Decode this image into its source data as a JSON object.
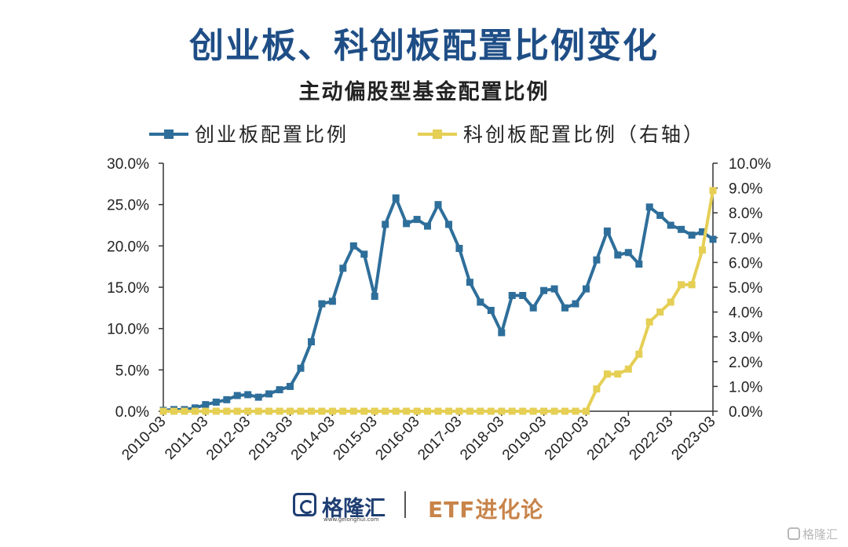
{
  "headline": "创业板、科创板配置比例变化",
  "footer": {
    "brand": "格隆汇",
    "url": "www.gelonghui.com",
    "column": "ETF进化论"
  },
  "watermark": "格隆汇",
  "colors": {
    "headline": "#1f4e86",
    "series_left": "#2e6e9a",
    "series_right": "#e5cf55",
    "column_text": "#c8844a"
  },
  "chart_data": {
    "type": "line",
    "title": "主动偏股型基金配置比例",
    "legend_position": "top",
    "grid": false,
    "x_tick_labels": [
      "2010-03",
      "2011-03",
      "2012-03",
      "2013-03",
      "2014-03",
      "2015-03",
      "2016-03",
      "2017-03",
      "2018-03",
      "2019-03",
      "2020-03",
      "2021-03",
      "2022-03",
      "2023-03"
    ],
    "x_range": [
      "2010-03",
      "2023-03"
    ],
    "y_left": {
      "range": [
        0,
        30
      ],
      "ticks": [
        "0.0%",
        "5.0%",
        "10.0%",
        "15.0%",
        "20.0%",
        "25.0%",
        "30.0%"
      ]
    },
    "y_right": {
      "label": "",
      "range": [
        0,
        10
      ],
      "ticks": [
        "0.0%",
        "1.0%",
        "2.0%",
        "3.0%",
        "4.0%",
        "5.0%",
        "6.0%",
        "7.0%",
        "8.0%",
        "9.0%",
        "10.0%"
      ]
    },
    "x": [
      "2010-03",
      "2010-06",
      "2010-09",
      "2010-12",
      "2011-03",
      "2011-06",
      "2011-09",
      "2011-12",
      "2012-03",
      "2012-06",
      "2012-09",
      "2012-12",
      "2013-03",
      "2013-06",
      "2013-09",
      "2013-12",
      "2014-03",
      "2014-06",
      "2014-09",
      "2014-12",
      "2015-03",
      "2015-06",
      "2015-09",
      "2015-12",
      "2016-03",
      "2016-06",
      "2016-09",
      "2016-12",
      "2017-03",
      "2017-06",
      "2017-09",
      "2017-12",
      "2018-03",
      "2018-06",
      "2018-09",
      "2018-12",
      "2019-03",
      "2019-06",
      "2019-09",
      "2019-12",
      "2020-03",
      "2020-06",
      "2020-09",
      "2020-12",
      "2021-03",
      "2021-06",
      "2021-09",
      "2021-12",
      "2022-03",
      "2022-06",
      "2022-09",
      "2022-12",
      "2023-03"
    ],
    "series": [
      {
        "name": "创业板配置比例",
        "axis": "left",
        "values": [
          0.1,
          0.2,
          0.2,
          0.4,
          0.8,
          1.1,
          1.4,
          1.9,
          2.0,
          1.7,
          2.1,
          2.6,
          3.0,
          5.2,
          8.4,
          13.0,
          13.3,
          17.3,
          20.0,
          19.0,
          13.9,
          22.6,
          25.8,
          22.7,
          23.2,
          22.4,
          25.0,
          22.6,
          19.7,
          15.6,
          13.2,
          12.2,
          9.5,
          14.0,
          14.0,
          12.5,
          14.6,
          14.8,
          12.5,
          13.0,
          14.8,
          18.3,
          21.8,
          18.9,
          19.2,
          17.8,
          24.7,
          23.7,
          22.5,
          22.0,
          21.3,
          21.7,
          20.8
        ]
      },
      {
        "name": "科创板配置比例（右轴）",
        "axis": "right",
        "values": [
          0,
          0,
          0,
          0,
          0,
          0,
          0,
          0,
          0,
          0,
          0,
          0,
          0,
          0,
          0,
          0,
          0,
          0,
          0,
          0,
          0,
          0,
          0,
          0,
          0,
          0,
          0,
          0,
          0,
          0,
          0,
          0,
          0,
          0,
          0,
          0,
          0,
          0,
          0,
          0,
          0,
          0.9,
          1.5,
          1.5,
          1.7,
          2.3,
          3.6,
          4.0,
          4.4,
          5.1,
          5.1,
          6.5,
          8.9
        ]
      }
    ]
  }
}
